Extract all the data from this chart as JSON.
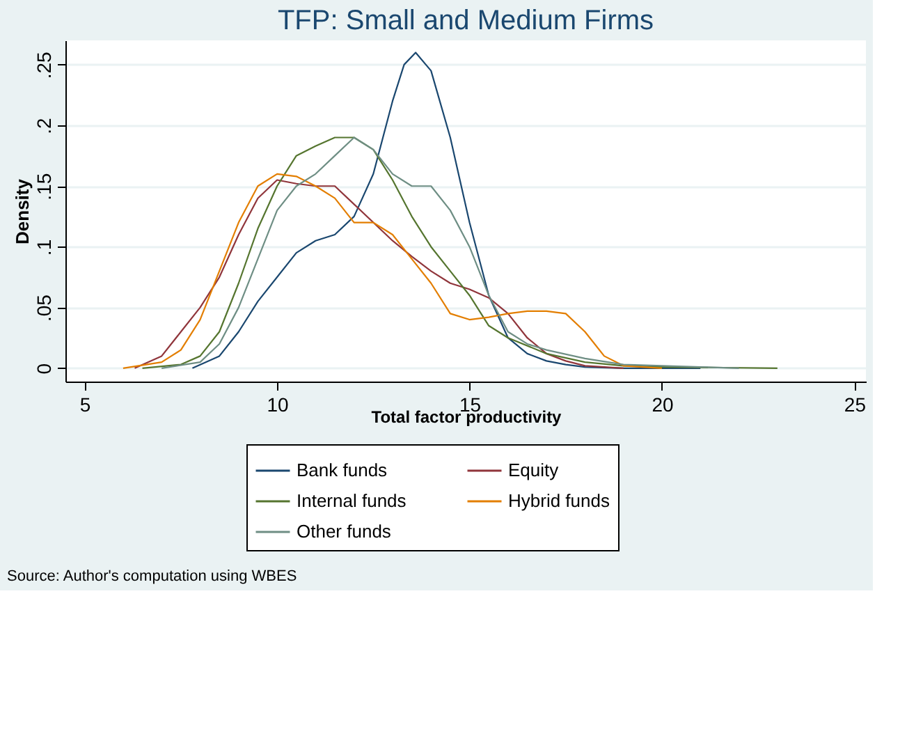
{
  "chart_data": {
    "type": "line",
    "title": "TFP: Small and Medium Firms",
    "xlabel": "Total factor productivity",
    "ylabel": "Density",
    "annotations": [
      "Source: Author's computation using WBES"
    ],
    "xlim": [
      4.5,
      25.3
    ],
    "xticks": [
      5,
      10,
      15,
      20,
      25
    ],
    "ylim": [
      -0.011,
      0.27
    ],
    "yticks": [
      {
        "value": 0,
        "label": "0"
      },
      {
        "value": 0.05,
        "label": ".05"
      },
      {
        "value": 0.1,
        "label": ".1"
      },
      {
        "value": 0.15,
        "label": ".15"
      },
      {
        "value": 0.2,
        "label": ".2"
      },
      {
        "value": 0.25,
        "label": ".25"
      }
    ],
    "grid": "y",
    "legend": "bottom",
    "line_style": "solid",
    "marker": "none",
    "series": [
      {
        "name": "Bank funds",
        "color": "#1a476f",
        "x": [
          7.8,
          8.5,
          9,
          9.5,
          10,
          10.5,
          11,
          11.5,
          12,
          12.5,
          13,
          13.3,
          13.6,
          14,
          14.5,
          15,
          15.5,
          16,
          16.5,
          17,
          17.5,
          18,
          19,
          21
        ],
        "values": [
          0,
          0.01,
          0.03,
          0.055,
          0.075,
          0.095,
          0.105,
          0.11,
          0.125,
          0.16,
          0.22,
          0.25,
          0.26,
          0.245,
          0.19,
          0.12,
          0.06,
          0.025,
          0.012,
          0.006,
          0.003,
          0.001,
          0,
          0
        ]
      },
      {
        "name": "Equity",
        "color": "#90353b",
        "x": [
          6.3,
          7,
          7.5,
          8,
          8.5,
          9,
          9.5,
          10,
          10.5,
          11,
          11.5,
          12,
          12.5,
          13,
          13.5,
          14,
          14.5,
          15,
          15.5,
          16,
          16.5,
          17,
          17.5,
          18,
          19
        ],
        "values": [
          0,
          0.01,
          0.03,
          0.05,
          0.075,
          0.11,
          0.14,
          0.155,
          0.152,
          0.15,
          0.15,
          0.135,
          0.12,
          0.105,
          0.092,
          0.08,
          0.07,
          0.065,
          0.058,
          0.045,
          0.025,
          0.012,
          0.006,
          0.002,
          0
        ]
      },
      {
        "name": "Internal funds",
        "color": "#55752f",
        "x": [
          6.5,
          7.5,
          8,
          8.5,
          9,
          9.5,
          10,
          10.5,
          11,
          11.5,
          12,
          12.5,
          13,
          13.5,
          14,
          14.5,
          15,
          15.5,
          16,
          17,
          18,
          19,
          20,
          23
        ],
        "values": [
          0,
          0.003,
          0.01,
          0.03,
          0.07,
          0.115,
          0.15,
          0.175,
          0.183,
          0.19,
          0.19,
          0.18,
          0.155,
          0.125,
          0.1,
          0.08,
          0.06,
          0.035,
          0.025,
          0.012,
          0.005,
          0.002,
          0.001,
          0
        ]
      },
      {
        "name": "Hybrid funds",
        "color": "#e37e00",
        "x": [
          6,
          7,
          7.5,
          8,
          8.5,
          9,
          9.5,
          10,
          10.5,
          11,
          11.5,
          12,
          12.5,
          13,
          13.5,
          14,
          14.5,
          15,
          15.5,
          16,
          16.5,
          17,
          17.5,
          18,
          18.5,
          19,
          20
        ],
        "values": [
          0,
          0.005,
          0.015,
          0.04,
          0.08,
          0.12,
          0.15,
          0.16,
          0.158,
          0.15,
          0.14,
          0.12,
          0.12,
          0.11,
          0.09,
          0.07,
          0.045,
          0.04,
          0.042,
          0.045,
          0.047,
          0.047,
          0.045,
          0.03,
          0.01,
          0.002,
          0
        ]
      },
      {
        "name": "Other funds",
        "color": "#6e8e84",
        "x": [
          7,
          8,
          8.5,
          9,
          9.5,
          10,
          10.5,
          11,
          11.5,
          12,
          12.5,
          13,
          13.5,
          14,
          14.5,
          15,
          15.5,
          16,
          16.5,
          17,
          18,
          19,
          20,
          21,
          22
        ],
        "values": [
          0,
          0.005,
          0.02,
          0.05,
          0.09,
          0.13,
          0.15,
          0.16,
          0.175,
          0.19,
          0.18,
          0.16,
          0.15,
          0.15,
          0.13,
          0.1,
          0.06,
          0.03,
          0.02,
          0.015,
          0.008,
          0.003,
          0.002,
          0.001,
          0
        ]
      }
    ]
  }
}
